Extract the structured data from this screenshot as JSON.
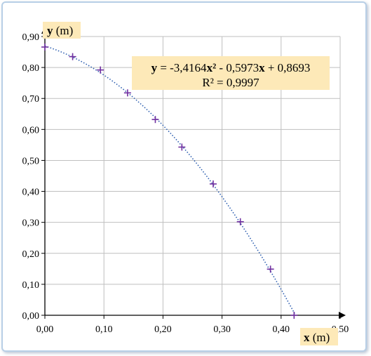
{
  "chart_data": {
    "type": "scatter",
    "xlabel": "x",
    "xlabel_unit": "(m)",
    "ylabel": "y",
    "ylabel_unit": "(m)",
    "xlim": [
      0,
      0.5
    ],
    "ylim": [
      0,
      0.9
    ],
    "x_ticks": [
      "0,00",
      "0,10",
      "0,20",
      "0,30",
      "0,40",
      "0,50"
    ],
    "y_ticks": [
      "0,00",
      "0,10",
      "0,20",
      "0,30",
      "0,40",
      "0,50",
      "0,60",
      "0,70",
      "0,80",
      "0,90"
    ],
    "grid": true,
    "points": [
      {
        "x": 0.0,
        "y": 0.866
      },
      {
        "x": 0.047,
        "y": 0.835
      },
      {
        "x": 0.094,
        "y": 0.792
      },
      {
        "x": 0.14,
        "y": 0.718
      },
      {
        "x": 0.187,
        "y": 0.632
      },
      {
        "x": 0.232,
        "y": 0.543
      },
      {
        "x": 0.285,
        "y": 0.424
      },
      {
        "x": 0.331,
        "y": 0.302
      },
      {
        "x": 0.382,
        "y": 0.149
      },
      {
        "x": 0.422,
        "y": 0.0
      }
    ],
    "trendline": {
      "type": "polynomial",
      "coefficients": [
        -3.4164,
        -0.5973,
        0.8693
      ],
      "equation_parts": {
        "y": "y",
        "eq": " = -3,4164",
        "x2": "x",
        "sq": "²",
        "mid": " - 0,5973",
        "x1": "x",
        "end": " + 0,8693"
      },
      "r2_label": "R² = 0,9997"
    },
    "colors": {
      "marker": "#7030a0",
      "trendline": "#2e5fb0",
      "grid": "#bfbfbf",
      "label_bg": "#fde9b8"
    }
  }
}
